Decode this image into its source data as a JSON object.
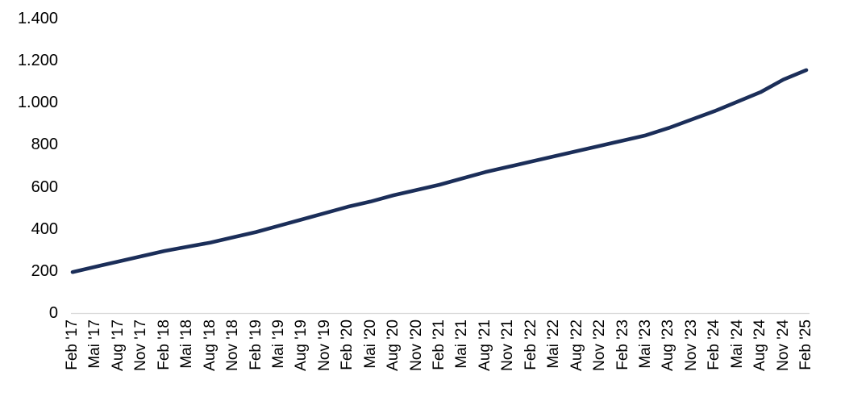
{
  "chart_data": {
    "type": "line",
    "title": "",
    "x_labels": [
      "Feb '17",
      "Mai '17",
      "Aug '17",
      "Nov '17",
      "Feb '18",
      "Mai '18",
      "Aug '18",
      "Nov '18",
      "Feb '19",
      "Mai '19",
      "Aug '19",
      "Nov '19",
      "Feb '20",
      "Mai '20",
      "Aug '20",
      "Nov '20",
      "Feb '21",
      "Mai '21",
      "Aug '21",
      "Nov '21",
      "Feb '22",
      "Mai '22",
      "Aug '22",
      "Nov '22",
      "Feb '23",
      "Mai '23",
      "Aug '23",
      "Nov '23",
      "Feb '24",
      "Mai '24",
      "Aug '24",
      "Nov '24",
      "Feb '25"
    ],
    "series": [
      {
        "name": "value-series",
        "color": "#1b2e59",
        "values": [
          195,
          220,
          245,
          270,
          295,
          315,
          335,
          360,
          385,
          415,
          445,
          475,
          505,
          530,
          560,
          585,
          610,
          640,
          670,
          695,
          720,
          745,
          770,
          795,
          820,
          845,
          880,
          920,
          960,
          1005,
          1050,
          1110,
          1155
        ]
      }
    ],
    "y_tick_values": [
      0,
      200,
      400,
      600,
      800,
      1000,
      1200,
      1400
    ],
    "y_tick_labels": [
      "0",
      "200",
      "400",
      "600",
      "800",
      "1.000",
      "1.200",
      "1.400"
    ],
    "ylim": [
      0,
      1400
    ],
    "grid": false,
    "legend": "none",
    "axis_line_color": "#d9d9d9",
    "label_color": "#000000",
    "background": "#ffffff"
  }
}
